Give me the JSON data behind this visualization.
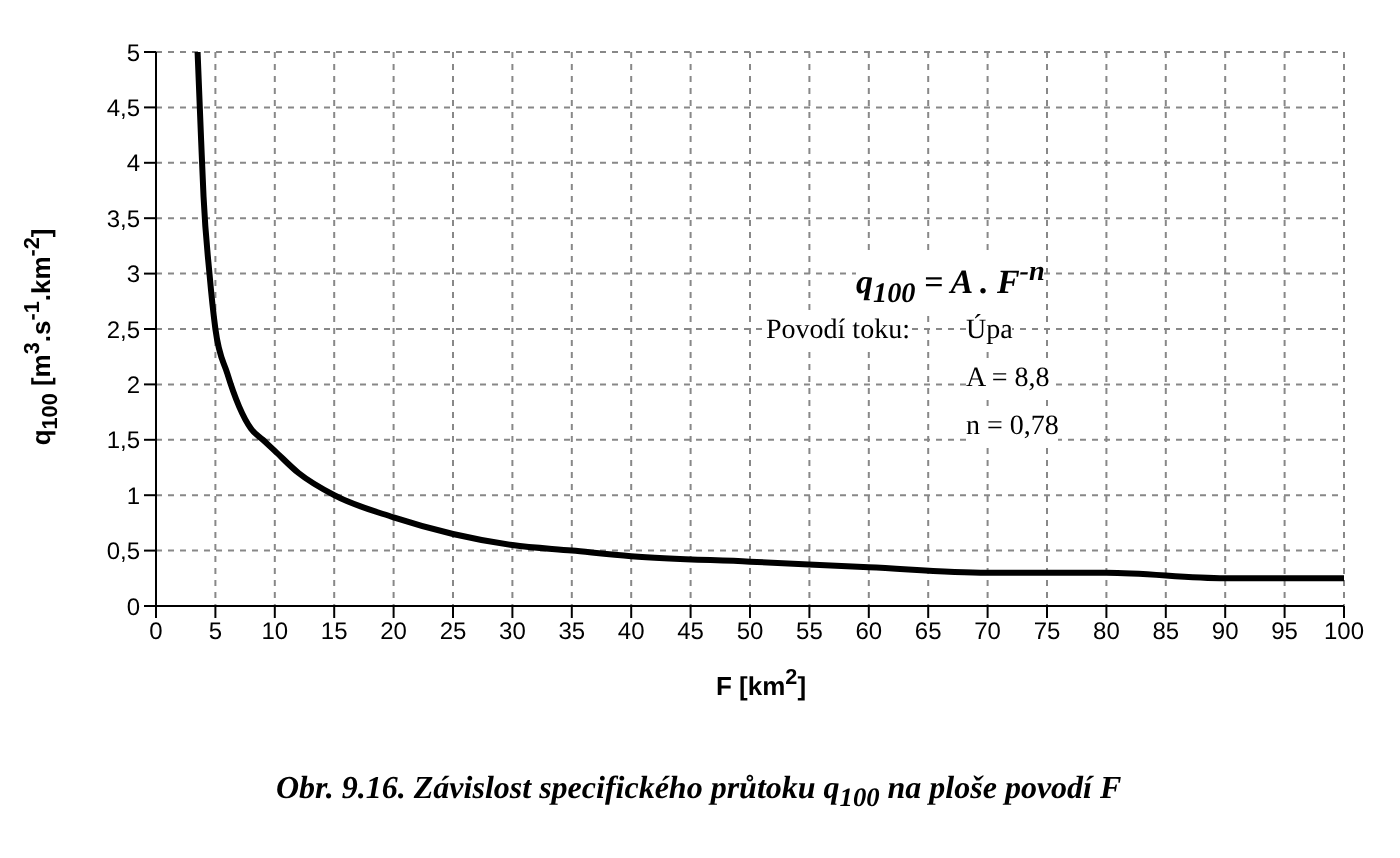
{
  "chart_data": {
    "type": "line",
    "xlabel": "F [km$^{2}$]",
    "ylabel": "q$_{100}$ [m$^{3}$.s$^{-1}$.km$^{-2}$]",
    "annotations": [
      "q$_{100}$ = A . F$^{-n}$",
      "Povodí toku:",
      "Úpa",
      "A = 8,8",
      "n = 0,78",
      "Obr. 9.16.  Závislost specifického průtoku q$_{100}$ na ploše povodí F"
    ],
    "x": [
      3.5,
      3.8,
      4,
      4.5,
      5,
      6,
      7,
      8,
      9,
      10,
      12,
      15,
      20,
      25,
      30,
      35,
      40,
      50,
      60,
      70,
      80,
      90,
      100
    ],
    "series": [
      {
        "color": "#000000",
        "values": [
          5,
          4.2,
          3.7,
          3,
          2.5,
          2.1,
          1.8,
          1.6,
          1.5,
          1.4,
          1.2,
          1.0,
          0.8,
          0.65,
          0.55,
          0.5,
          0.45,
          0.4,
          0.35,
          0.3,
          0.3,
          0.25,
          0.25
        ]
      }
    ],
    "xlim": [
      0,
      100
    ],
    "xticks": [
      0,
      5,
      10,
      15,
      20,
      25,
      30,
      35,
      40,
      45,
      50,
      55,
      60,
      65,
      70,
      75,
      80,
      85,
      90,
      95,
      100
    ],
    "ylim": [
      0,
      5
    ],
    "yticks": [
      0,
      {
        "value": 0.5,
        "label": "0,5"
      },
      1,
      {
        "value": 1.5,
        "label": "1,5"
      },
      2,
      {
        "value": 2.5,
        "label": "2,5"
      },
      3,
      {
        "value": 3.5,
        "label": "3,5"
      },
      4,
      {
        "value": 4.5,
        "label": "4,5"
      },
      5
    ],
    "grid": true,
    "marker": "none",
    "line_style": "solid"
  }
}
